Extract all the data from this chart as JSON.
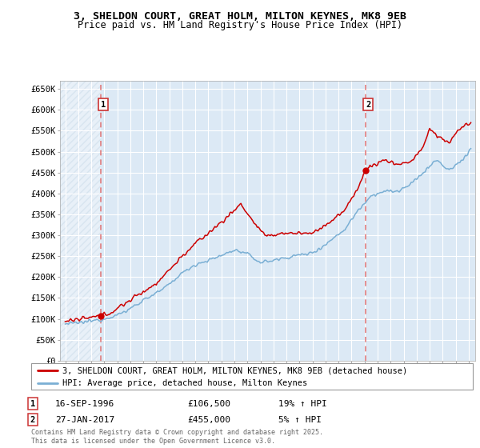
{
  "title_line1": "3, SHELDON COURT, GREAT HOLM, MILTON KEYNES, MK8 9EB",
  "title_line2": "Price paid vs. HM Land Registry's House Price Index (HPI)",
  "legend_line1": "3, SHELDON COURT, GREAT HOLM, MILTON KEYNES, MK8 9EB (detached house)",
  "legend_line2": "HPI: Average price, detached house, Milton Keynes",
  "annotation1_date": "16-SEP-1996",
  "annotation1_price": "£106,500",
  "annotation1_hpi": "19% ↑ HPI",
  "annotation2_date": "27-JAN-2017",
  "annotation2_price": "£455,000",
  "annotation2_hpi": "5% ↑ HPI",
  "sale1_year": 1996.71,
  "sale1_price": 106500,
  "sale2_year": 2017.07,
  "sale2_price": 455000,
  "ylabel_ticks": [
    0,
    50000,
    100000,
    150000,
    200000,
    250000,
    300000,
    350000,
    400000,
    450000,
    500000,
    550000,
    600000,
    650000
  ],
  "ylim": [
    0,
    670000
  ],
  "xlim_start": 1993.6,
  "xlim_end": 2025.5,
  "background_color": "#dce9f5",
  "hatch_color": "#b8cfe0",
  "grid_color": "#ffffff",
  "red_line_color": "#cc0000",
  "blue_line_color": "#7aafd4",
  "sale_dot_color": "#cc0000",
  "vline_color": "#e07070",
  "footnote": "Contains HM Land Registry data © Crown copyright and database right 2025.\nThis data is licensed under the Open Government Licence v3.0."
}
